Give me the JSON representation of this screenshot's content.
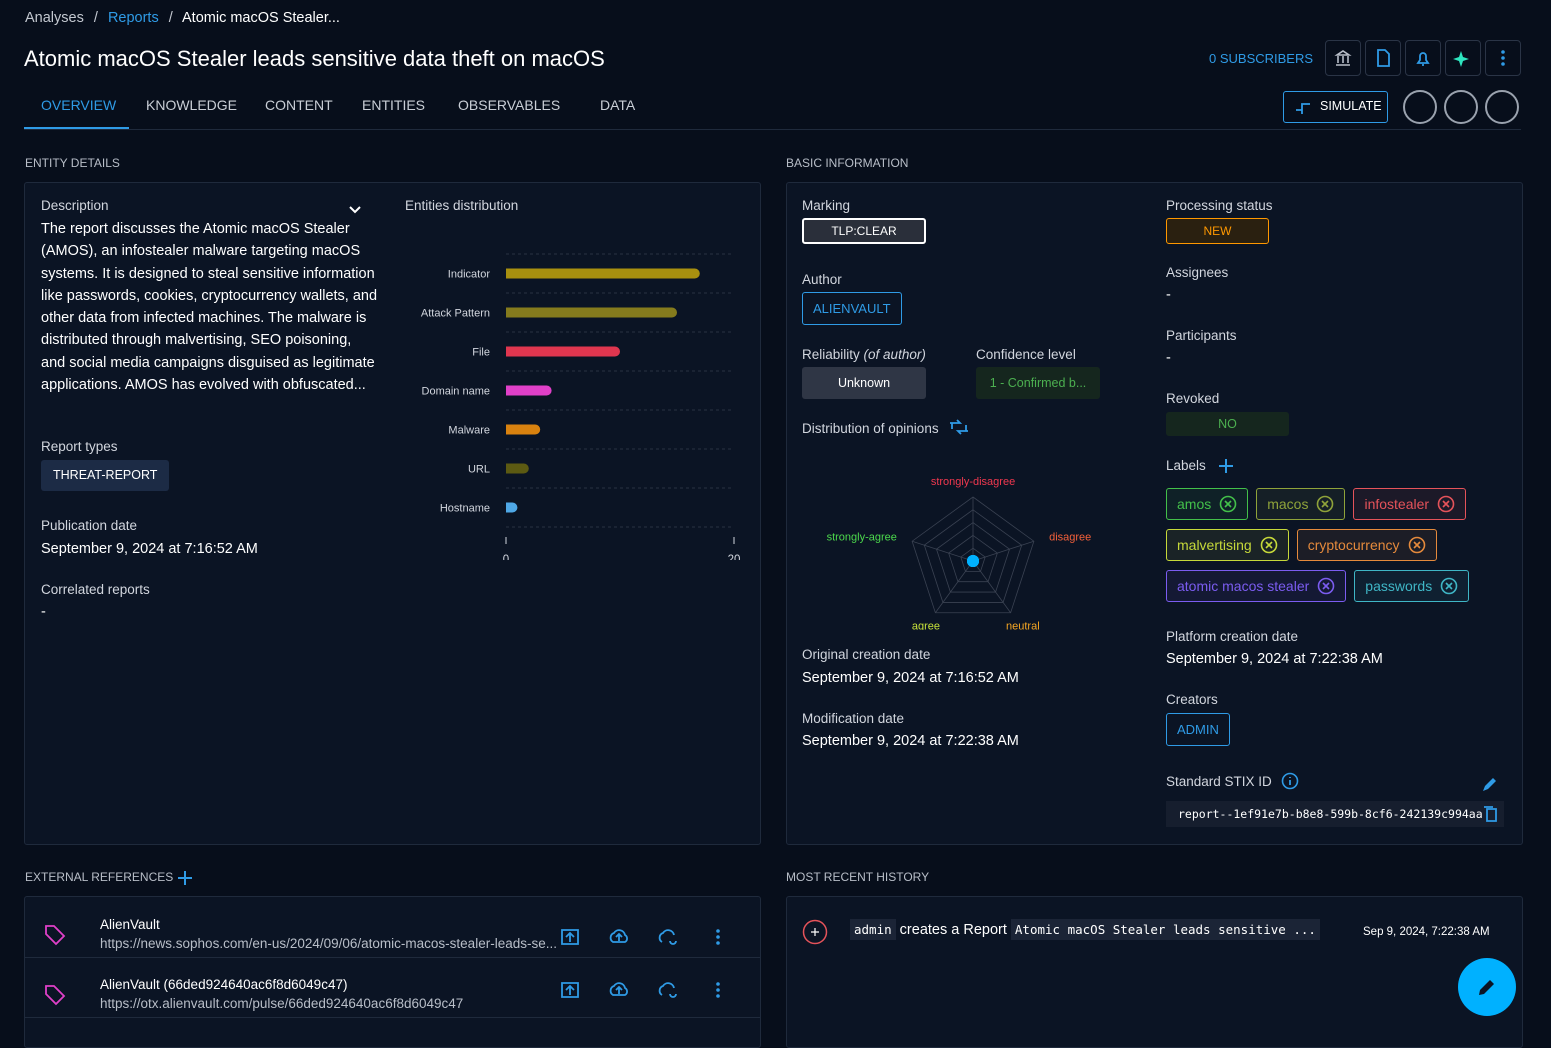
{
  "breadcrumb": {
    "items": [
      "Analyses",
      "Reports"
    ],
    "current": "Atomic macOS Stealer..."
  },
  "header": {
    "title": "Atomic macOS Stealer leads sensitive data theft on macOS",
    "subscribers": "0 SUBSCRIBERS",
    "simulate": "SIMULATE"
  },
  "tabs": [
    "OVERVIEW",
    "KNOWLEDGE",
    "CONTENT",
    "ENTITIES",
    "OBSERVABLES",
    "DATA"
  ],
  "entity_details": {
    "heading": "ENTITY DETAILS",
    "description_label": "Description",
    "description": "The report discusses the Atomic macOS Stealer (AMOS), an infostealer malware targeting macOS systems. It is designed to steal sensitive information like passwords, cookies, cryptocurrency wallets, and other data from infected machines. The malware is distributed through malvertising, SEO poisoning, and social media campaigns disguised as legitimate applications. AMOS has evolved with obfuscated...",
    "report_types_label": "Report types",
    "report_types": [
      "THREAT-REPORT"
    ],
    "publication_date_label": "Publication date",
    "publication_date": "September 9, 2024 at 7:16:52 AM",
    "correlated_reports_label": "Correlated reports",
    "correlated_reports": "-"
  },
  "chart_data": [
    {
      "type": "bar",
      "orientation": "horizontal",
      "title": "Entities distribution",
      "categories": [
        "Indicator",
        "Attack Pattern",
        "File",
        "Domain name",
        "Malware",
        "URL",
        "Hostname"
      ],
      "values": [
        17,
        15,
        10,
        4,
        3,
        2,
        1
      ],
      "colors": [
        "#a8900f",
        "#857b1d",
        "#e0364f",
        "#e040c8",
        "#d9820f",
        "#5c5a12",
        "#4fa8e6"
      ],
      "xlim": [
        0,
        20
      ],
      "xticks": [
        0,
        20
      ],
      "grid": true
    },
    {
      "type": "radar",
      "title": "Distribution of opinions",
      "categories": [
        "strongly-disagree",
        "disagree",
        "neutral",
        "agree",
        "strongly-agree"
      ],
      "values": [
        0,
        0,
        0,
        0,
        0
      ],
      "category_colors": [
        "#f0384f",
        "#f4603a",
        "#f5a623",
        "#c6e03a",
        "#4cd94c"
      ],
      "color": "#00b1ff",
      "rlim": [
        0,
        1
      ]
    }
  ],
  "basic_information": {
    "heading": "BASIC INFORMATION",
    "marking_label": "Marking",
    "marking": "TLP:CLEAR",
    "processing_status_label": "Processing status",
    "processing_status": "NEW",
    "author_label": "Author",
    "author": "ALIENVAULT",
    "assignees_label": "Assignees",
    "assignees": "-",
    "participants_label": "Participants",
    "participants": "-",
    "reliability_label": "Reliability",
    "reliability_note": "(of author)",
    "reliability": "Unknown",
    "confidence_label": "Confidence level",
    "confidence": "1 - Confirmed b...",
    "revoked_label": "Revoked",
    "revoked": "NO",
    "labels_label": "Labels",
    "labels": [
      {
        "name": "amos",
        "color": "#43c04a"
      },
      {
        "name": "macos",
        "color": "#8fa33a"
      },
      {
        "name": "infostealer",
        "color": "#e5535a"
      },
      {
        "name": "malvertising",
        "color": "#c6d93a"
      },
      {
        "name": "cryptocurrency",
        "color": "#e58a3c"
      },
      {
        "name": "atomic macos stealer",
        "color": "#7b5cf0"
      },
      {
        "name": "passwords",
        "color": "#3fb6c6"
      }
    ],
    "platform_creation_label": "Platform creation date",
    "platform_creation": "September 9, 2024 at 7:22:38 AM",
    "creators_label": "Creators",
    "creators": [
      "ADMIN"
    ],
    "original_creation_label": "Original creation date",
    "original_creation": "September 9, 2024 at 7:16:52 AM",
    "modification_label": "Modification date",
    "modification": "September 9, 2024 at 7:22:38 AM",
    "stix_label": "Standard STIX ID",
    "stix_id": "report--1ef91e7b-b8e8-599b-8cf6-242139c994aa"
  },
  "external_references": {
    "heading": "EXTERNAL REFERENCES",
    "items": [
      {
        "name": "AlienVault",
        "url": "https://news.sophos.com/en-us/2024/09/06/atomic-macos-stealer-leads-se..."
      },
      {
        "name": "AlienVault (66ded924640ac6f8d6049c47)",
        "url": "https://otx.alienvault.com/pulse/66ded924640ac6f8d6049c47"
      }
    ]
  },
  "history": {
    "heading": "MOST RECENT HISTORY",
    "entries": [
      {
        "user": "admin",
        "action": "creates a Report",
        "target": "Atomic macOS Stealer leads sensitive ...",
        "date": "Sep 9, 2024, 7:22:38 AM"
      }
    ]
  }
}
